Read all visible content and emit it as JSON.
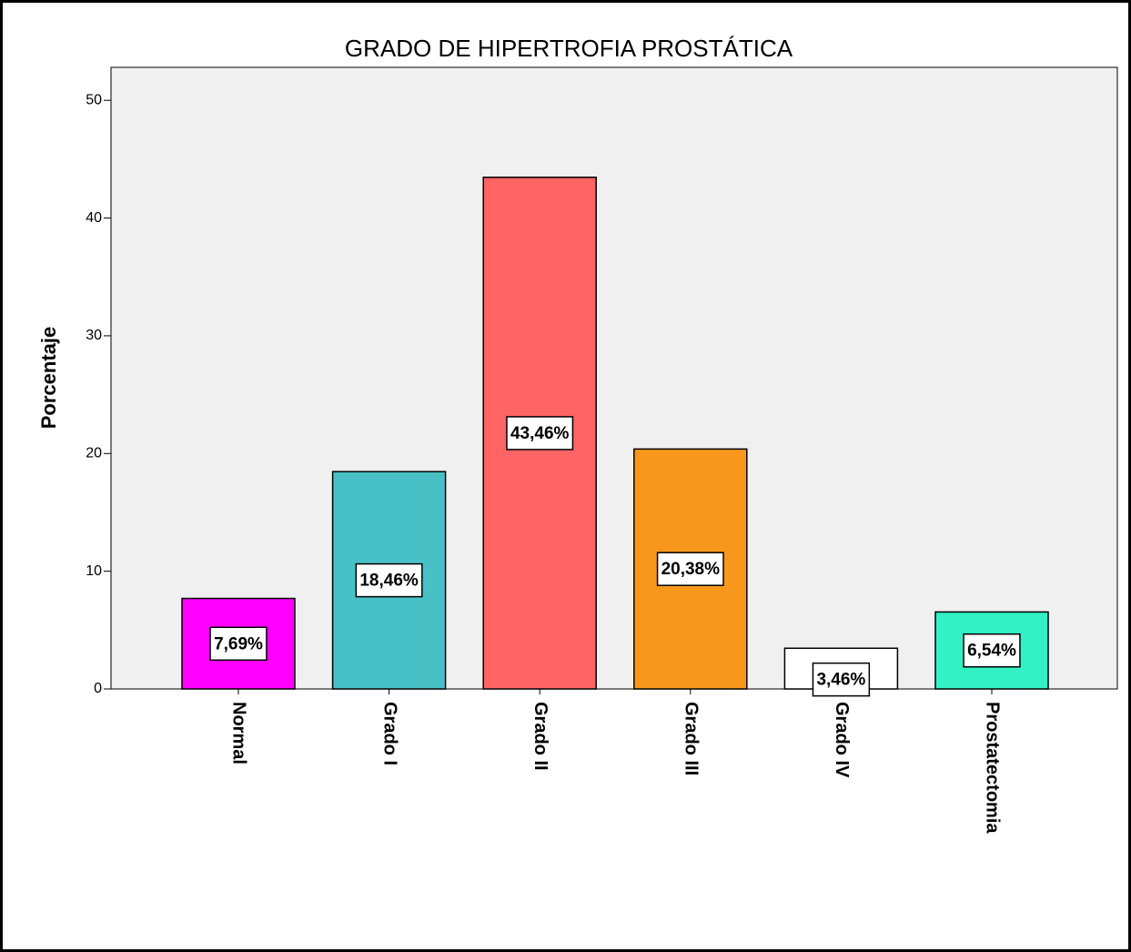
{
  "chart_data": {
    "type": "bar",
    "title": "GRADO DE HIPERTROFIA PROSTÁTICA",
    "y_label": "Porcentaje",
    "categories": [
      "Normal",
      "Grado I",
      "Grado II",
      "Grado III",
      "Grado IV",
      "Prostatectomia"
    ],
    "values": [
      7.69,
      18.46,
      43.46,
      20.38,
      3.46,
      6.54
    ],
    "value_labels": [
      "7,69%",
      "18,46%",
      "43,46%",
      "20,38%",
      "3,46%",
      "6,54%"
    ],
    "colors": [
      "#ff00ff",
      "#48c1c6",
      "#ff6464",
      "#f7981d",
      "#ffffff",
      "#33f1c4"
    ],
    "ylim": [
      0,
      52.8
    ],
    "yticks": [
      0,
      10,
      20,
      30,
      40,
      50
    ],
    "grid": false
  }
}
